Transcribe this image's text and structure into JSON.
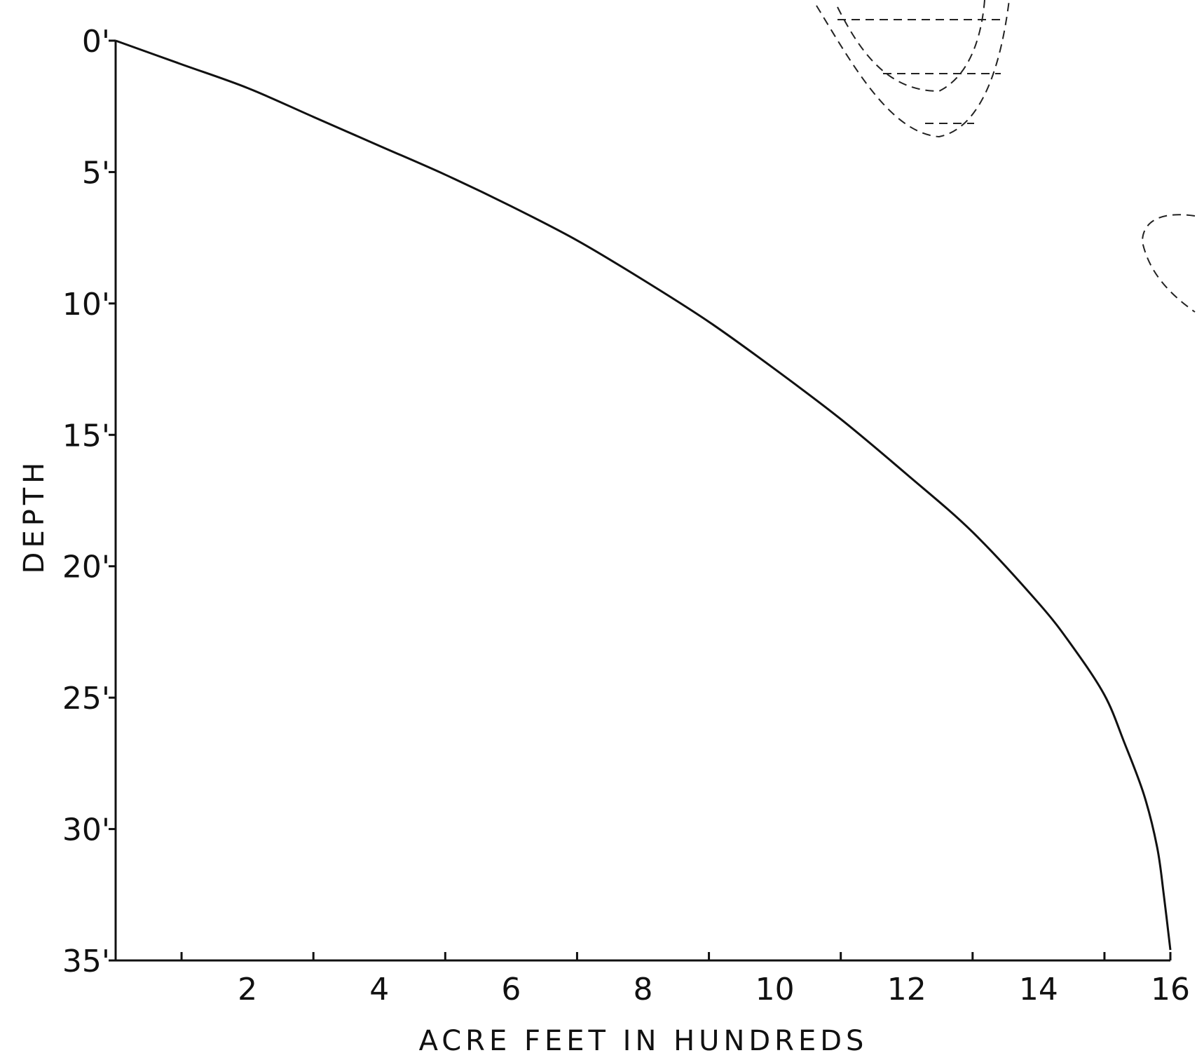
{
  "chart_data": {
    "type": "line",
    "title": "",
    "xlabel": "ACRE FEET IN HUNDREDS",
    "ylabel": "DEPTH",
    "xlim": [
      0,
      16
    ],
    "ylim": [
      0,
      35
    ],
    "y_inverted": true,
    "grid": false,
    "x_tick_labels": [
      {
        "value": 2,
        "label": "2"
      },
      {
        "value": 4,
        "label": "4"
      },
      {
        "value": 6,
        "label": "6"
      },
      {
        "value": 8,
        "label": "8"
      },
      {
        "value": 10,
        "label": "10"
      },
      {
        "value": 12,
        "label": "12"
      },
      {
        "value": 14,
        "label": "14"
      },
      {
        "value": 16,
        "label": "16"
      }
    ],
    "x_minor_ticks": [
      1,
      3,
      5,
      7,
      9,
      11,
      13,
      15,
      16
    ],
    "y_tick_labels": [
      {
        "value": 0,
        "label": "0'"
      },
      {
        "value": 5,
        "label": "5'"
      },
      {
        "value": 10,
        "label": "10'"
      },
      {
        "value": 15,
        "label": "15'"
      },
      {
        "value": 20,
        "label": "20'"
      },
      {
        "value": 25,
        "label": "25'"
      },
      {
        "value": 30,
        "label": "30'"
      },
      {
        "value": 35,
        "label": "35'"
      }
    ],
    "series": [
      {
        "x": [
          0,
          1,
          2,
          3,
          4,
          5,
          6,
          7,
          8,
          9,
          10,
          11,
          12,
          13,
          14,
          14.5,
          15,
          15.3,
          15.6,
          15.8,
          15.9,
          16.0
        ],
        "y": [
          0,
          0.9,
          1.8,
          2.9,
          4.0,
          5.1,
          6.3,
          7.6,
          9.1,
          10.7,
          12.5,
          14.4,
          16.5,
          18.7,
          21.4,
          23.0,
          24.9,
          26.7,
          28.7,
          30.7,
          32.5,
          34.6
        ]
      }
    ],
    "line_color": "#111111"
  }
}
